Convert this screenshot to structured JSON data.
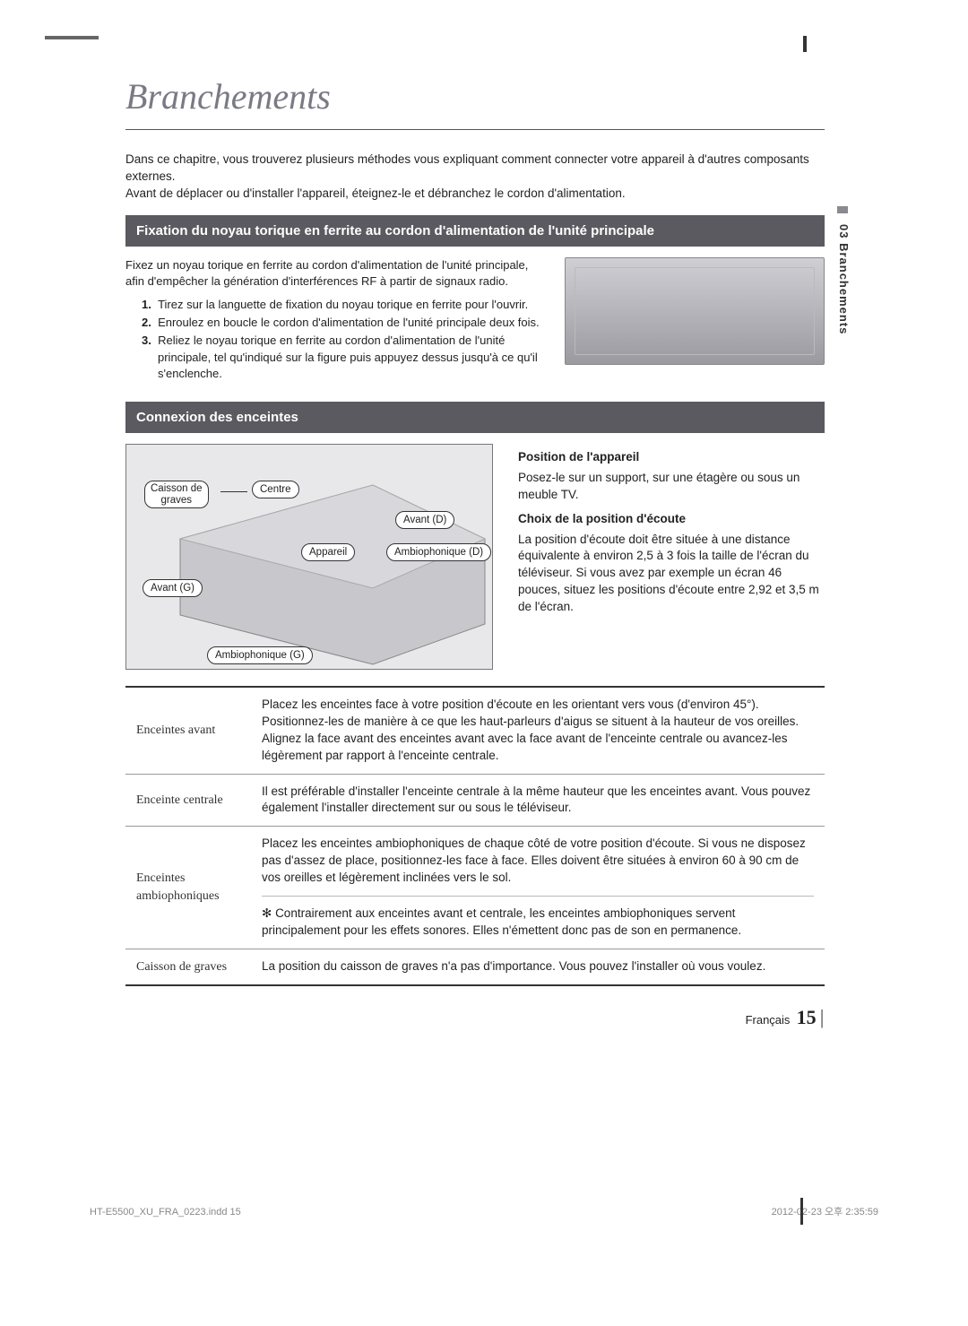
{
  "chapter_title": "Branchements",
  "side_tab": "03   Branchements",
  "intro_p1": "Dans ce chapitre, vous trouverez plusieurs méthodes vous expliquant comment connecter votre appareil à d'autres composants externes.",
  "intro_p2": "Avant de déplacer ou d'installer l'appareil, éteignez-le et débranchez le cordon d'alimentation.",
  "section1_title": "Fixation du noyau torique en ferrite au cordon d'alimentation de l'unité principale",
  "ferrite_intro": "Fixez un noyau torique en ferrite au cordon d'alimentation de l'unité principale, afin d'empêcher la génération d'interférences RF à partir de signaux radio.",
  "ferrite_steps": [
    "Tirez sur la languette de fixation du noyau torique en ferrite pour l'ouvrir.",
    "Enroulez en boucle le cordon d'alimentation de l'unité principale deux fois.",
    "Reliez le noyau torique en ferrite au cordon d'alimentation de l'unité principale, tel qu'indiqué sur la figure puis appuyez dessus jusqu'à ce qu'il s'enclenche."
  ],
  "section2_title": "Connexion des enceintes",
  "room_labels": {
    "sub": "Caisson de\ngraves",
    "centre": "Centre",
    "front_r": "Avant (D)",
    "surround_r": "Ambiophonique (D)",
    "product": "Appareil",
    "front_l": "Avant (G)",
    "surround_l": "Ambiophonique (G)"
  },
  "pos_title": "Position de l'appareil",
  "pos_text": "Posez-le sur un support, sur une étagère ou sous un meuble TV.",
  "listen_title": "Choix de la position d'écoute",
  "listen_text": "La position d'écoute doit être située à une distance équivalente à environ 2,5 à 3 fois la taille de l'écran du téléviseur. Si vous avez par exemple un écran 46 pouces, situez les positions d'écoute entre 2,92 et 3,5 m de l'écran.",
  "table": {
    "rows": [
      {
        "label": "Enceintes avant",
        "text": "Placez les enceintes face à votre position d'écoute en les orientant vers vous (d'environ 45°). Positionnez-les de manière à ce que les haut-parleurs d'aigus se situent à la hauteur de vos oreilles. Alignez la face avant des enceintes avant avec la face avant de l'enceinte centrale ou avancez-les légèrement par rapport à l'enceinte centrale."
      },
      {
        "label": "Enceinte centrale",
        "text": "Il est préférable d'installer l'enceinte centrale à la même hauteur que les enceintes avant. Vous pouvez également l'installer directement sur ou sous le téléviseur."
      },
      {
        "label": "Enceintes ambiophoniques",
        "text": "Placez les enceintes ambiophoniques de chaque côté de votre position d'écoute. Si vous ne disposez pas d'assez de place, positionnez-les face à face. Elles doivent être situées à environ 60 à 90 cm de vos oreilles et légèrement inclinées vers le sol.",
        "note": "Contrairement aux enceintes avant et centrale, les enceintes ambiophoniques servent principalement pour les effets sonores. Elles n'émettent donc pas de son en permanence."
      },
      {
        "label": "Caisson de graves",
        "text": "La position du caisson de graves n'a pas d'importance. Vous pouvez l'installer où vous voulez."
      }
    ]
  },
  "footer_lang": "Français",
  "footer_page": "15",
  "print_left": "HT-E5500_XU_FRA_0223.indd   15",
  "print_right": "2012-02-23   오후 2:35:59"
}
